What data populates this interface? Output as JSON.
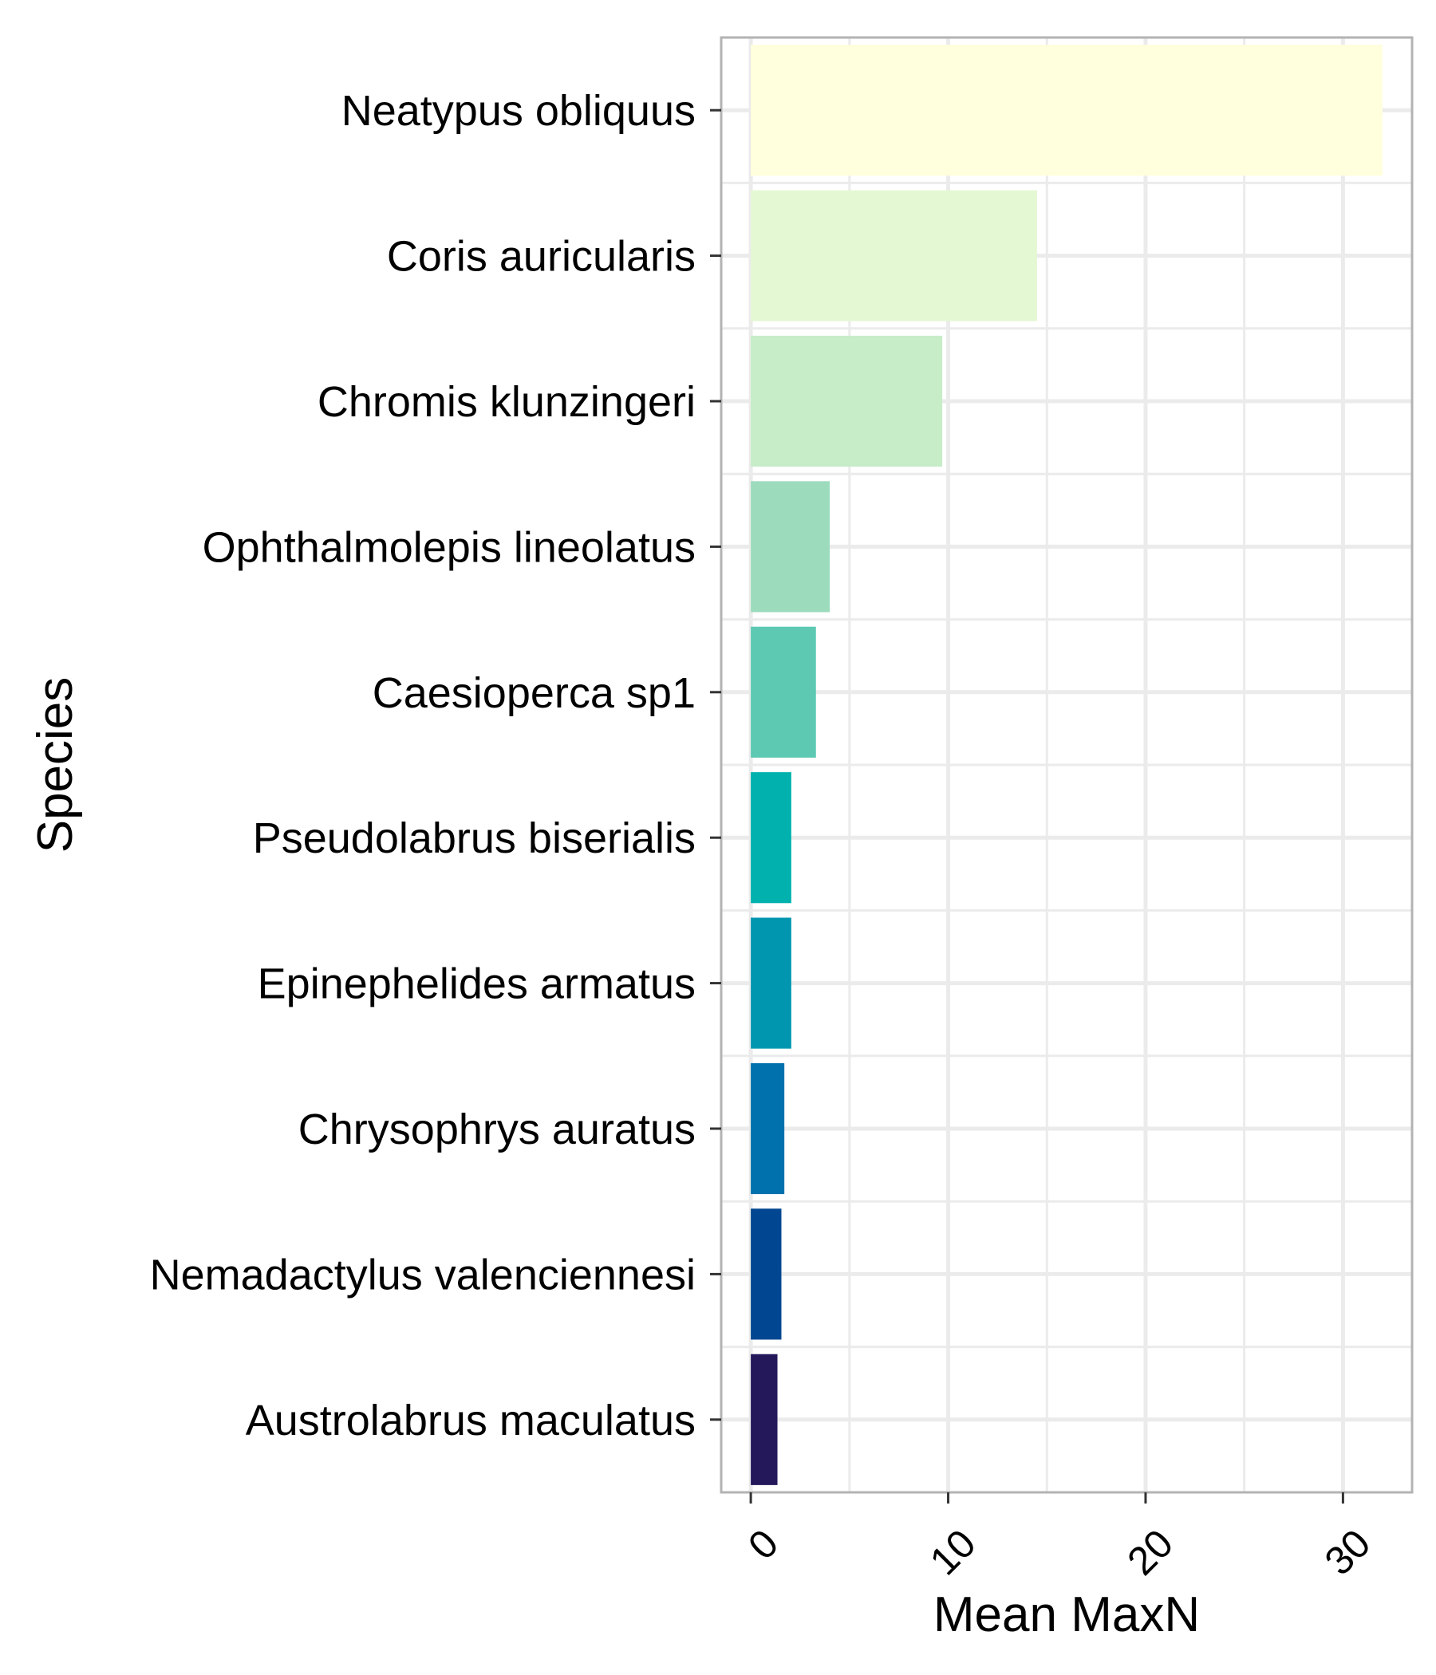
{
  "chart_data": {
    "type": "bar",
    "orientation": "horizontal",
    "title": "",
    "xlabel": "Mean MaxN",
    "ylabel": "Species",
    "xlim": [
      -1.5,
      33.5
    ],
    "x_ticks": [
      0,
      10,
      20,
      30
    ],
    "x_tick_labels": [
      "0",
      "10",
      "20",
      "30"
    ],
    "grid": true,
    "categories": [
      "Neatypus obliquus",
      "Coris auricularis",
      "Chromis klunzingeri",
      "Ophthalmolepis lineolatus",
      "Caesioperca sp1",
      "Pseudolabrus biserialis",
      "Epinephelides armatus",
      "Chrysophrys auratus",
      "Nemadactylus valenciennesi",
      "Austrolabrus maculatus"
    ],
    "values": [
      32.0,
      14.5,
      9.7,
      4.0,
      3.3,
      2.05,
      2.05,
      1.7,
      1.55,
      1.35
    ],
    "colors": [
      "#FFFFDD",
      "#E4F8D4",
      "#C7EDC8",
      "#9CDCBD",
      "#5DC9B3",
      "#00B1AD",
      "#0196B0",
      "#0071AD",
      "#014690",
      "#24185B"
    ]
  }
}
